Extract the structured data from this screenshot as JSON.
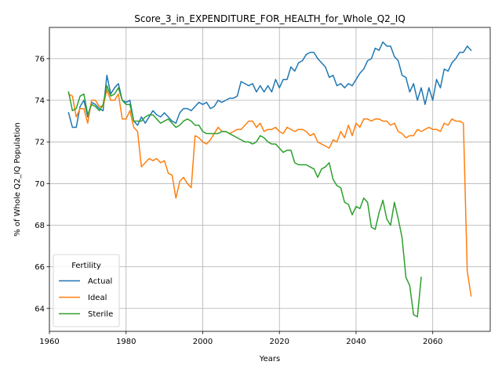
{
  "chart_data": {
    "type": "line",
    "title": "Score_3_in_EXPENDITURE_FOR_HEALTH_for_Whole_Q2_IQ",
    "xlabel": "Years",
    "ylabel": "% of Whole Q2_IQ Population",
    "xlim": [
      1960,
      2075
    ],
    "ylim": [
      62.9,
      77.5
    ],
    "xticks": [
      1960,
      1980,
      2000,
      2020,
      2040,
      2060
    ],
    "yticks": [
      64,
      66,
      68,
      70,
      72,
      74,
      76
    ],
    "grid": true,
    "legend": {
      "title": "Fertility",
      "placement": "lower-left"
    },
    "series": [
      {
        "name": "Actual",
        "color": "#1f77b4",
        "points": [
          [
            1965,
            73.4
          ],
          [
            1966,
            72.7
          ],
          [
            1967,
            72.7
          ],
          [
            1968,
            73.7
          ],
          [
            1969,
            74.0
          ],
          [
            1970,
            73.2
          ],
          [
            1971,
            73.9
          ],
          [
            1972,
            73.8
          ],
          [
            1973,
            73.6
          ],
          [
            1974,
            73.5
          ],
          [
            1975,
            75.2
          ],
          [
            1976,
            74.3
          ],
          [
            1977,
            74.6
          ],
          [
            1978,
            74.8
          ],
          [
            1979,
            74.0
          ],
          [
            1980,
            73.9
          ],
          [
            1981,
            74.0
          ],
          [
            1982,
            73.0
          ],
          [
            1983,
            72.8
          ],
          [
            1984,
            73.2
          ],
          [
            1985,
            72.9
          ],
          [
            1986,
            73.2
          ],
          [
            1987,
            73.5
          ],
          [
            1988,
            73.3
          ],
          [
            1989,
            73.2
          ],
          [
            1990,
            73.4
          ],
          [
            1991,
            73.2
          ],
          [
            1992,
            73.0
          ],
          [
            1993,
            72.9
          ],
          [
            1994,
            73.4
          ],
          [
            1995,
            73.6
          ],
          [
            1996,
            73.6
          ],
          [
            1997,
            73.5
          ],
          [
            1998,
            73.7
          ],
          [
            1999,
            73.9
          ],
          [
            2000,
            73.8
          ],
          [
            2001,
            73.9
          ],
          [
            2002,
            73.6
          ],
          [
            2003,
            73.7
          ],
          [
            2004,
            74.0
          ],
          [
            2005,
            73.9
          ],
          [
            2006,
            74.0
          ],
          [
            2007,
            74.1
          ],
          [
            2008,
            74.1
          ],
          [
            2009,
            74.2
          ],
          [
            2010,
            74.9
          ],
          [
            2011,
            74.8
          ],
          [
            2012,
            74.7
          ],
          [
            2013,
            74.8
          ],
          [
            2014,
            74.4
          ],
          [
            2015,
            74.7
          ],
          [
            2016,
            74.4
          ],
          [
            2017,
            74.7
          ],
          [
            2018,
            74.4
          ],
          [
            2019,
            75.0
          ],
          [
            2020,
            74.6
          ],
          [
            2021,
            75.0
          ],
          [
            2022,
            75.0
          ],
          [
            2023,
            75.6
          ],
          [
            2024,
            75.4
          ],
          [
            2025,
            75.8
          ],
          [
            2026,
            75.9
          ],
          [
            2027,
            76.2
          ],
          [
            2028,
            76.3
          ],
          [
            2029,
            76.3
          ],
          [
            2030,
            76.0
          ],
          [
            2031,
            75.8
          ],
          [
            2032,
            75.6
          ],
          [
            2033,
            75.1
          ],
          [
            2034,
            75.2
          ],
          [
            2035,
            74.7
          ],
          [
            2036,
            74.8
          ],
          [
            2037,
            74.6
          ],
          [
            2038,
            74.8
          ],
          [
            2039,
            74.7
          ],
          [
            2040,
            75.0
          ],
          [
            2041,
            75.3
          ],
          [
            2042,
            75.5
          ],
          [
            2043,
            75.9
          ],
          [
            2044,
            76.0
          ],
          [
            2045,
            76.5
          ],
          [
            2046,
            76.4
          ],
          [
            2047,
            76.8
          ],
          [
            2048,
            76.6
          ],
          [
            2049,
            76.6
          ],
          [
            2050,
            76.1
          ],
          [
            2051,
            75.9
          ],
          [
            2052,
            75.2
          ],
          [
            2053,
            75.1
          ],
          [
            2054,
            74.4
          ],
          [
            2055,
            74.8
          ],
          [
            2056,
            74.0
          ],
          [
            2057,
            74.6
          ],
          [
            2058,
            73.8
          ],
          [
            2059,
            74.6
          ],
          [
            2060,
            74.0
          ],
          [
            2061,
            75.0
          ],
          [
            2062,
            74.6
          ],
          [
            2063,
            75.5
          ],
          [
            2064,
            75.4
          ],
          [
            2065,
            75.8
          ],
          [
            2066,
            76.0
          ],
          [
            2067,
            76.3
          ],
          [
            2068,
            76.3
          ],
          [
            2069,
            76.6
          ],
          [
            2070,
            76.4
          ]
        ]
      },
      {
        "name": "Ideal",
        "color": "#ff7f0e",
        "points": [
          [
            1965,
            74.3
          ],
          [
            1966,
            74.2
          ],
          [
            1967,
            73.2
          ],
          [
            1968,
            73.6
          ],
          [
            1969,
            73.6
          ],
          [
            1970,
            72.9
          ],
          [
            1971,
            74.0
          ],
          [
            1972,
            74.0
          ],
          [
            1973,
            73.7
          ],
          [
            1974,
            73.7
          ],
          [
            1975,
            74.5
          ],
          [
            1976,
            74.0
          ],
          [
            1977,
            74.0
          ],
          [
            1978,
            74.3
          ],
          [
            1979,
            73.1
          ],
          [
            1980,
            73.1
          ],
          [
            1981,
            73.5
          ],
          [
            1982,
            72.7
          ],
          [
            1983,
            72.5
          ],
          [
            1984,
            70.8
          ],
          [
            1985,
            71.0
          ],
          [
            1986,
            71.2
          ],
          [
            1987,
            71.1
          ],
          [
            1988,
            71.2
          ],
          [
            1989,
            71.0
          ],
          [
            1990,
            71.1
          ],
          [
            1991,
            70.5
          ],
          [
            1992,
            70.4
          ],
          [
            1993,
            69.3
          ],
          [
            1994,
            70.1
          ],
          [
            1995,
            70.3
          ],
          [
            1996,
            70.0
          ],
          [
            1997,
            69.8
          ],
          [
            1998,
            72.3
          ],
          [
            1999,
            72.2
          ],
          [
            2000,
            72.0
          ],
          [
            2001,
            71.9
          ],
          [
            2002,
            72.1
          ],
          [
            2003,
            72.4
          ],
          [
            2004,
            72.7
          ],
          [
            2005,
            72.5
          ],
          [
            2006,
            72.5
          ],
          [
            2007,
            72.4
          ],
          [
            2008,
            72.5
          ],
          [
            2009,
            72.6
          ],
          [
            2010,
            72.6
          ],
          [
            2011,
            72.8
          ],
          [
            2012,
            73.0
          ],
          [
            2013,
            73.0
          ],
          [
            2014,
            72.7
          ],
          [
            2015,
            72.9
          ],
          [
            2016,
            72.5
          ],
          [
            2017,
            72.6
          ],
          [
            2018,
            72.6
          ],
          [
            2019,
            72.7
          ],
          [
            2020,
            72.5
          ],
          [
            2021,
            72.4
          ],
          [
            2022,
            72.7
          ],
          [
            2023,
            72.6
          ],
          [
            2024,
            72.5
          ],
          [
            2025,
            72.6
          ],
          [
            2026,
            72.6
          ],
          [
            2027,
            72.5
          ],
          [
            2028,
            72.3
          ],
          [
            2029,
            72.4
          ],
          [
            2030,
            72.0
          ],
          [
            2031,
            71.9
          ],
          [
            2032,
            71.8
          ],
          [
            2033,
            71.7
          ],
          [
            2034,
            72.1
          ],
          [
            2035,
            72.0
          ],
          [
            2036,
            72.5
          ],
          [
            2037,
            72.2
          ],
          [
            2038,
            72.8
          ],
          [
            2039,
            72.3
          ],
          [
            2040,
            72.9
          ],
          [
            2041,
            72.7
          ],
          [
            2042,
            73.1
          ],
          [
            2043,
            73.1
          ],
          [
            2044,
            73.0
          ],
          [
            2045,
            73.1
          ],
          [
            2046,
            73.1
          ],
          [
            2047,
            73.0
          ],
          [
            2048,
            73.0
          ],
          [
            2049,
            72.8
          ],
          [
            2050,
            72.9
          ],
          [
            2051,
            72.5
          ],
          [
            2052,
            72.4
          ],
          [
            2053,
            72.2
          ],
          [
            2054,
            72.3
          ],
          [
            2055,
            72.3
          ],
          [
            2056,
            72.6
          ],
          [
            2057,
            72.5
          ],
          [
            2058,
            72.6
          ],
          [
            2059,
            72.7
          ],
          [
            2060,
            72.6
          ],
          [
            2061,
            72.6
          ],
          [
            2062,
            72.5
          ],
          [
            2063,
            72.9
          ],
          [
            2064,
            72.8
          ],
          [
            2065,
            73.1
          ],
          [
            2066,
            73.0
          ],
          [
            2067,
            73.0
          ],
          [
            2068,
            72.9
          ],
          [
            2069,
            65.8
          ],
          [
            2070,
            64.6
          ]
        ]
      },
      {
        "name": "Sterile",
        "color": "#2ca02c",
        "points": [
          [
            1965,
            74.4
          ],
          [
            1966,
            73.5
          ],
          [
            1967,
            73.6
          ],
          [
            1968,
            74.2
          ],
          [
            1969,
            74.3
          ],
          [
            1970,
            73.3
          ],
          [
            1971,
            73.8
          ],
          [
            1972,
            73.7
          ],
          [
            1973,
            73.5
          ],
          [
            1974,
            73.8
          ],
          [
            1975,
            74.7
          ],
          [
            1976,
            74.2
          ],
          [
            1977,
            74.3
          ],
          [
            1978,
            74.6
          ],
          [
            1979,
            74.0
          ],
          [
            1980,
            73.8
          ],
          [
            1981,
            73.8
          ],
          [
            1982,
            73.0
          ],
          [
            1983,
            73.0
          ],
          [
            1984,
            73.0
          ],
          [
            1985,
            73.2
          ],
          [
            1986,
            73.3
          ],
          [
            1987,
            73.3
          ],
          [
            1988,
            73.1
          ],
          [
            1989,
            72.9
          ],
          [
            1990,
            73.0
          ],
          [
            1991,
            73.1
          ],
          [
            1992,
            72.9
          ],
          [
            1993,
            72.7
          ],
          [
            1994,
            72.8
          ],
          [
            1995,
            73.0
          ],
          [
            1996,
            73.1
          ],
          [
            1997,
            73.0
          ],
          [
            1998,
            72.8
          ],
          [
            1999,
            72.8
          ],
          [
            2000,
            72.5
          ],
          [
            2001,
            72.4
          ],
          [
            2002,
            72.4
          ],
          [
            2003,
            72.4
          ],
          [
            2004,
            72.4
          ],
          [
            2005,
            72.5
          ],
          [
            2006,
            72.5
          ],
          [
            2007,
            72.4
          ],
          [
            2008,
            72.3
          ],
          [
            2009,
            72.2
          ],
          [
            2010,
            72.1
          ],
          [
            2011,
            72.0
          ],
          [
            2012,
            72.0
          ],
          [
            2013,
            71.9
          ],
          [
            2014,
            72.0
          ],
          [
            2015,
            72.3
          ],
          [
            2016,
            72.2
          ],
          [
            2017,
            72.0
          ],
          [
            2018,
            71.9
          ],
          [
            2019,
            71.9
          ],
          [
            2020,
            71.7
          ],
          [
            2021,
            71.5
          ],
          [
            2022,
            71.6
          ],
          [
            2023,
            71.6
          ],
          [
            2024,
            71.0
          ],
          [
            2025,
            70.9
          ],
          [
            2026,
            70.9
          ],
          [
            2027,
            70.9
          ],
          [
            2028,
            70.8
          ],
          [
            2029,
            70.7
          ],
          [
            2030,
            70.3
          ],
          [
            2031,
            70.7
          ],
          [
            2032,
            70.8
          ],
          [
            2033,
            71.0
          ],
          [
            2034,
            70.2
          ],
          [
            2035,
            69.9
          ],
          [
            2036,
            69.8
          ],
          [
            2037,
            69.1
          ],
          [
            2038,
            69.0
          ],
          [
            2039,
            68.5
          ],
          [
            2040,
            68.9
          ],
          [
            2041,
            68.8
          ],
          [
            2042,
            69.3
          ],
          [
            2043,
            69.1
          ],
          [
            2044,
            67.9
          ],
          [
            2045,
            67.8
          ],
          [
            2046,
            68.6
          ],
          [
            2047,
            69.2
          ],
          [
            2048,
            68.3
          ],
          [
            2049,
            68.0
          ],
          [
            2050,
            69.1
          ],
          [
            2051,
            68.3
          ],
          [
            2052,
            67.4
          ],
          [
            2053,
            65.5
          ],
          [
            2054,
            65.1
          ],
          [
            2055,
            63.7
          ],
          [
            2056,
            63.6
          ],
          [
            2057,
            65.5
          ]
        ]
      }
    ]
  }
}
